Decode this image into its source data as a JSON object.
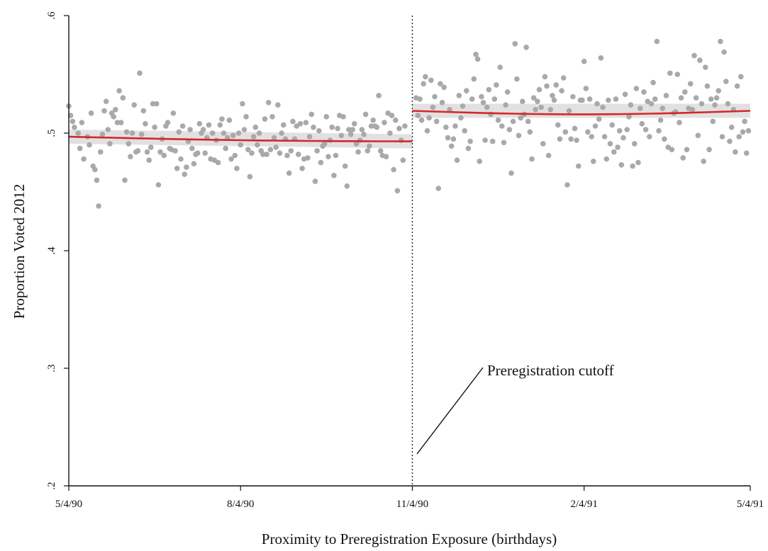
{
  "chart_data": {
    "type": "scatter",
    "title": "",
    "xlabel": "Proximity to Preregistration Exposure (birthdays)",
    "ylabel": "Proportion Voted 2012",
    "xlim": [
      0,
      365
    ],
    "ylim": [
      0.2,
      0.6
    ],
    "xticks": [
      {
        "value": 0,
        "label": "5/4/90"
      },
      {
        "value": 92,
        "label": "8/4/90"
      },
      {
        "value": 184,
        "label": "11/4/90"
      },
      {
        "value": 276,
        "label": "2/4/91"
      },
      {
        "value": 365,
        "label": "5/4/91"
      }
    ],
    "yticks": [
      {
        "value": 0.2,
        "label": ".2"
      },
      {
        "value": 0.3,
        "label": ".3"
      },
      {
        "value": 0.4,
        "label": ".4"
      },
      {
        "value": 0.5,
        "label": ".5"
      },
      {
        "value": 0.6,
        "label": ".6"
      }
    ],
    "cutoff_x": 184,
    "annotation": {
      "text": "Preregistration cutoff"
    },
    "grid": false,
    "legend": "none",
    "colors": {
      "points": "#a9a9a9",
      "fit": "#d7262a",
      "ci_band": "#d7d7d7"
    },
    "fit_lines": [
      {
        "x_start": 0,
        "x_end": 184,
        "y_start": 0.497,
        "y_end": 0.493
      },
      {
        "x_start": 184,
        "x_end": 365,
        "y_start": 0.519,
        "y_end": 0.519
      }
    ],
    "points": [
      [
        0,
        0.523
      ],
      [
        1,
        0.515
      ],
      [
        2,
        0.51
      ],
      [
        3,
        0.505
      ],
      [
        5,
        0.5
      ],
      [
        6,
        0.487
      ],
      [
        7,
        0.509
      ],
      [
        8,
        0.478
      ],
      [
        10,
        0.497
      ],
      [
        11,
        0.49
      ],
      [
        12,
        0.517
      ],
      [
        13,
        0.472
      ],
      [
        14,
        0.469
      ],
      [
        15,
        0.46
      ],
      [
        16,
        0.438
      ],
      [
        17,
        0.484
      ],
      [
        18,
        0.499
      ],
      [
        19,
        0.519
      ],
      [
        20,
        0.527
      ],
      [
        21,
        0.503
      ],
      [
        22,
        0.491
      ],
      [
        23,
        0.517
      ],
      [
        24,
        0.514
      ],
      [
        25,
        0.52
      ],
      [
        26,
        0.509
      ],
      [
        27,
        0.536
      ],
      [
        28,
        0.509
      ],
      [
        29,
        0.53
      ],
      [
        30,
        0.46
      ],
      [
        31,
        0.501
      ],
      [
        32,
        0.491
      ],
      [
        33,
        0.48
      ],
      [
        34,
        0.5
      ],
      [
        35,
        0.524
      ],
      [
        36,
        0.484
      ],
      [
        37,
        0.485
      ],
      [
        38,
        0.551
      ],
      [
        39,
        0.499
      ],
      [
        40,
        0.519
      ],
      [
        41,
        0.508
      ],
      [
        42,
        0.484
      ],
      [
        43,
        0.477
      ],
      [
        44,
        0.488
      ],
      [
        45,
        0.525
      ],
      [
        46,
        0.505
      ],
      [
        47,
        0.525
      ],
      [
        48,
        0.456
      ],
      [
        49,
        0.484
      ],
      [
        50,
        0.495
      ],
      [
        51,
        0.481
      ],
      [
        52,
        0.506
      ],
      [
        53,
        0.509
      ],
      [
        54,
        0.487
      ],
      [
        55,
        0.486
      ],
      [
        56,
        0.517
      ],
      [
        57,
        0.485
      ],
      [
        58,
        0.47
      ],
      [
        59,
        0.501
      ],
      [
        60,
        0.478
      ],
      [
        61,
        0.506
      ],
      [
        62,
        0.465
      ],
      [
        63,
        0.471
      ],
      [
        64,
        0.493
      ],
      [
        65,
        0.503
      ],
      [
        66,
        0.487
      ],
      [
        67,
        0.474
      ],
      [
        68,
        0.482
      ],
      [
        69,
        0.483
      ],
      [
        70,
        0.508
      ],
      [
        71,
        0.5
      ],
      [
        72,
        0.503
      ],
      [
        73,
        0.483
      ],
      [
        74,
        0.496
      ],
      [
        75,
        0.507
      ],
      [
        76,
        0.478
      ],
      [
        77,
        0.5
      ],
      [
        78,
        0.477
      ],
      [
        79,
        0.494
      ],
      [
        80,
        0.475
      ],
      [
        81,
        0.507
      ],
      [
        82,
        0.512
      ],
      [
        83,
        0.5
      ],
      [
        84,
        0.487
      ],
      [
        85,
        0.496
      ],
      [
        86,
        0.511
      ],
      [
        87,
        0.478
      ],
      [
        88,
        0.498
      ],
      [
        89,
        0.481
      ],
      [
        90,
        0.47
      ],
      [
        91,
        0.5
      ],
      [
        92,
        0.49
      ],
      [
        93,
        0.525
      ],
      [
        94,
        0.503
      ],
      [
        95,
        0.514
      ],
      [
        96,
        0.486
      ],
      [
        97,
        0.463
      ],
      [
        98,
        0.483
      ],
      [
        99,
        0.497
      ],
      [
        100,
        0.505
      ],
      [
        101,
        0.49
      ],
      [
        102,
        0.5
      ],
      [
        103,
        0.485
      ],
      [
        104,
        0.482
      ],
      [
        105,
        0.512
      ],
      [
        106,
        0.482
      ],
      [
        107,
        0.526
      ],
      [
        108,
        0.486
      ],
      [
        109,
        0.514
      ],
      [
        110,
        0.496
      ],
      [
        111,
        0.488
      ],
      [
        112,
        0.524
      ],
      [
        113,
        0.483
      ],
      [
        114,
        0.5
      ],
      [
        115,
        0.507
      ],
      [
        116,
        0.495
      ],
      [
        117,
        0.481
      ],
      [
        118,
        0.466
      ],
      [
        119,
        0.485
      ],
      [
        120,
        0.51
      ],
      [
        121,
        0.495
      ],
      [
        122,
        0.506
      ],
      [
        123,
        0.482
      ],
      [
        124,
        0.508
      ],
      [
        125,
        0.47
      ],
      [
        126,
        0.478
      ],
      [
        127,
        0.509
      ],
      [
        128,
        0.479
      ],
      [
        129,
        0.497
      ],
      [
        130,
        0.516
      ],
      [
        131,
        0.505
      ],
      [
        132,
        0.459
      ],
      [
        133,
        0.485
      ],
      [
        134,
        0.502
      ],
      [
        135,
        0.475
      ],
      [
        136,
        0.489
      ],
      [
        137,
        0.491
      ],
      [
        138,
        0.514
      ],
      [
        139,
        0.48
      ],
      [
        140,
        0.494
      ],
      [
        141,
        0.505
      ],
      [
        142,
        0.464
      ],
      [
        143,
        0.481
      ],
      [
        144,
        0.504
      ],
      [
        145,
        0.515
      ],
      [
        146,
        0.498
      ],
      [
        147,
        0.514
      ],
      [
        148,
        0.472
      ],
      [
        149,
        0.455
      ],
      [
        150,
        0.503
      ],
      [
        151,
        0.499
      ],
      [
        152,
        0.503
      ],
      [
        153,
        0.508
      ],
      [
        154,
        0.491
      ],
      [
        155,
        0.484
      ],
      [
        156,
        0.494
      ],
      [
        157,
        0.503
      ],
      [
        158,
        0.499
      ],
      [
        159,
        0.516
      ],
      [
        160,
        0.485
      ],
      [
        161,
        0.489
      ],
      [
        162,
        0.506
      ],
      [
        163,
        0.511
      ],
      [
        164,
        0.506
      ],
      [
        165,
        0.505
      ],
      [
        166,
        0.532
      ],
      [
        167,
        0.485
      ],
      [
        168,
        0.481
      ],
      [
        169,
        0.509
      ],
      [
        170,
        0.48
      ],
      [
        171,
        0.517
      ],
      [
        172,
        0.5
      ],
      [
        173,
        0.515
      ],
      [
        174,
        0.469
      ],
      [
        175,
        0.511
      ],
      [
        176,
        0.451
      ],
      [
        177,
        0.504
      ],
      [
        178,
        0.494
      ],
      [
        179,
        0.477
      ],
      [
        180,
        0.506
      ],
      [
        186,
        0.53
      ],
      [
        187,
        0.515
      ],
      [
        188,
        0.529
      ],
      [
        189,
        0.511
      ],
      [
        190,
        0.542
      ],
      [
        191,
        0.548
      ],
      [
        192,
        0.502
      ],
      [
        193,
        0.513
      ],
      [
        194,
        0.545
      ],
      [
        195,
        0.522
      ],
      [
        196,
        0.531
      ],
      [
        197,
        0.51
      ],
      [
        198,
        0.453
      ],
      [
        199,
        0.542
      ],
      [
        200,
        0.526
      ],
      [
        201,
        0.539
      ],
      [
        202,
        0.505
      ],
      [
        203,
        0.496
      ],
      [
        204,
        0.52
      ],
      [
        205,
        0.489
      ],
      [
        206,
        0.495
      ],
      [
        207,
        0.506
      ],
      [
        208,
        0.477
      ],
      [
        209,
        0.532
      ],
      [
        210,
        0.513
      ],
      [
        211,
        0.523
      ],
      [
        212,
        0.502
      ],
      [
        213,
        0.536
      ],
      [
        214,
        0.487
      ],
      [
        215,
        0.493
      ],
      [
        216,
        0.529
      ],
      [
        217,
        0.546
      ],
      [
        218,
        0.567
      ],
      [
        219,
        0.563
      ],
      [
        220,
        0.476
      ],
      [
        221,
        0.531
      ],
      [
        222,
        0.526
      ],
      [
        223,
        0.494
      ],
      [
        224,
        0.522
      ],
      [
        225,
        0.537
      ],
      [
        226,
        0.516
      ],
      [
        227,
        0.493
      ],
      [
        228,
        0.529
      ],
      [
        229,
        0.541
      ],
      [
        230,
        0.511
      ],
      [
        231,
        0.556
      ],
      [
        232,
        0.506
      ],
      [
        233,
        0.492
      ],
      [
        234,
        0.524
      ],
      [
        235,
        0.535
      ],
      [
        236,
        0.503
      ],
      [
        237,
        0.466
      ],
      [
        238,
        0.51
      ],
      [
        239,
        0.576
      ],
      [
        240,
        0.546
      ],
      [
        241,
        0.498
      ],
      [
        242,
        0.513
      ],
      [
        243,
        0.527
      ],
      [
        244,
        0.516
      ],
      [
        245,
        0.573
      ],
      [
        246,
        0.51
      ],
      [
        247,
        0.501
      ],
      [
        248,
        0.478
      ],
      [
        249,
        0.53
      ],
      [
        250,
        0.52
      ],
      [
        251,
        0.527
      ],
      [
        252,
        0.537
      ],
      [
        253,
        0.522
      ],
      [
        254,
        0.491
      ],
      [
        255,
        0.548
      ],
      [
        256,
        0.54
      ],
      [
        257,
        0.481
      ],
      [
        258,
        0.52
      ],
      [
        259,
        0.532
      ],
      [
        260,
        0.528
      ],
      [
        261,
        0.541
      ],
      [
        262,
        0.507
      ],
      [
        263,
        0.495
      ],
      [
        264,
        0.536
      ],
      [
        265,
        0.547
      ],
      [
        266,
        0.501
      ],
      [
        267,
        0.456
      ],
      [
        268,
        0.519
      ],
      [
        269,
        0.495
      ],
      [
        270,
        0.531
      ],
      [
        271,
        0.504
      ],
      [
        272,
        0.494
      ],
      [
        273,
        0.472
      ],
      [
        274,
        0.528
      ],
      [
        275,
        0.528
      ],
      [
        276,
        0.561
      ],
      [
        277,
        0.538
      ],
      [
        278,
        0.501
      ],
      [
        279,
        0.529
      ],
      [
        280,
        0.497
      ],
      [
        281,
        0.476
      ],
      [
        282,
        0.506
      ],
      [
        283,
        0.525
      ],
      [
        284,
        0.512
      ],
      [
        285,
        0.564
      ],
      [
        286,
        0.522
      ],
      [
        287,
        0.497
      ],
      [
        288,
        0.478
      ],
      [
        289,
        0.528
      ],
      [
        290,
        0.491
      ],
      [
        291,
        0.507
      ],
      [
        292,
        0.484
      ],
      [
        293,
        0.529
      ],
      [
        294,
        0.488
      ],
      [
        295,
        0.502
      ],
      [
        296,
        0.473
      ],
      [
        297,
        0.496
      ],
      [
        298,
        0.533
      ],
      [
        299,
        0.503
      ],
      [
        300,
        0.514
      ],
      [
        301,
        0.524
      ],
      [
        302,
        0.472
      ],
      [
        303,
        0.491
      ],
      [
        304,
        0.538
      ],
      [
        305,
        0.475
      ],
      [
        306,
        0.521
      ],
      [
        307,
        0.508
      ],
      [
        308,
        0.535
      ],
      [
        309,
        0.503
      ],
      [
        310,
        0.527
      ],
      [
        311,
        0.497
      ],
      [
        312,
        0.525
      ],
      [
        313,
        0.543
      ],
      [
        314,
        0.529
      ],
      [
        315,
        0.578
      ],
      [
        316,
        0.502
      ],
      [
        317,
        0.511
      ],
      [
        318,
        0.521
      ],
      [
        319,
        0.495
      ],
      [
        320,
        0.532
      ],
      [
        321,
        0.488
      ],
      [
        322,
        0.551
      ],
      [
        323,
        0.486
      ],
      [
        324,
        0.517
      ],
      [
        325,
        0.518
      ],
      [
        326,
        0.55
      ],
      [
        327,
        0.509
      ],
      [
        328,
        0.53
      ],
      [
        329,
        0.479
      ],
      [
        330,
        0.535
      ],
      [
        331,
        0.486
      ],
      [
        332,
        0.521
      ],
      [
        333,
        0.542
      ],
      [
        334,
        0.52
      ],
      [
        335,
        0.566
      ],
      [
        336,
        0.53
      ],
      [
        337,
        0.498
      ],
      [
        338,
        0.562
      ],
      [
        339,
        0.525
      ],
      [
        340,
        0.476
      ],
      [
        341,
        0.556
      ],
      [
        342,
        0.54
      ],
      [
        343,
        0.486
      ],
      [
        344,
        0.529
      ],
      [
        345,
        0.51
      ],
      [
        346,
        0.524
      ],
      [
        347,
        0.53
      ],
      [
        348,
        0.536
      ],
      [
        349,
        0.578
      ],
      [
        350,
        0.497
      ],
      [
        351,
        0.569
      ],
      [
        352,
        0.544
      ],
      [
        353,
        0.525
      ],
      [
        354,
        0.493
      ],
      [
        355,
        0.505
      ],
      [
        356,
        0.52
      ],
      [
        357,
        0.484
      ],
      [
        358,
        0.54
      ],
      [
        359,
        0.497
      ],
      [
        360,
        0.548
      ],
      [
        361,
        0.501
      ],
      [
        362,
        0.51
      ],
      [
        363,
        0.483
      ],
      [
        364,
        0.502
      ]
    ]
  }
}
